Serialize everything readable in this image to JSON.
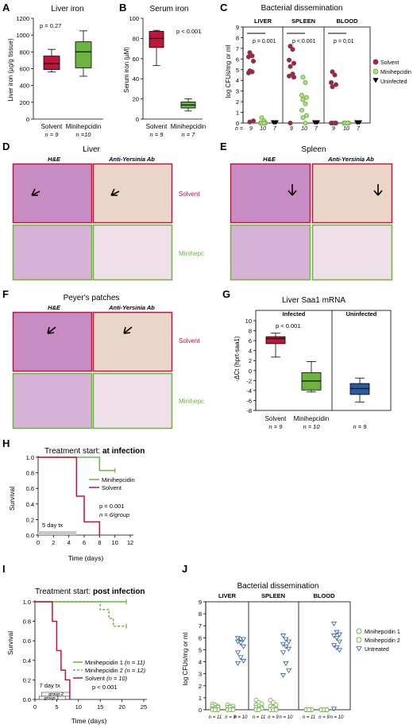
{
  "colors": {
    "solvent": "#c0143c",
    "mini": "#6cb33f",
    "blue": "#2c5aa0",
    "uninf": "#333333"
  },
  "panels": {
    "A": {
      "letter": "A",
      "title": "Liver iron",
      "ylabel": "Liver iron (µg/g tissue)",
      "pval": "p = 0.27",
      "ticks": [
        "0",
        "200",
        "400",
        "600",
        "800",
        "1000",
        "1200"
      ],
      "groups": [
        {
          "label": "Solvent",
          "n": "n = 9"
        },
        {
          "label": "Minihepcidin",
          "n": "n =10"
        }
      ]
    },
    "B": {
      "letter": "B",
      "title": "Serum iron",
      "ylabel": "Serum iron (µM)",
      "pval": "p < 0.001",
      "ticks": [
        "0",
        "20",
        "40",
        "60",
        "80",
        "100"
      ],
      "groups": [
        {
          "label": "Solvent",
          "n": "n = 9"
        },
        {
          "label": "Minihepcidin",
          "n": "n = 7"
        }
      ]
    },
    "C": {
      "letter": "C",
      "title": "Bacterial dissemination",
      "ylabel": "log CFUs/mg or ml",
      "ticks": [
        "0",
        "1",
        "2",
        "3",
        "4",
        "5",
        "6",
        "7",
        "8",
        "9"
      ],
      "sections": [
        {
          "label": "LIVER",
          "pval": "p = 0.001"
        },
        {
          "label": "SPLEEN",
          "pval": "p < 0.001"
        },
        {
          "label": "BLOOD",
          "pval": "p = 0.01"
        }
      ],
      "nprefix": "n =",
      "nvals": [
        "9",
        "10",
        "7",
        "9",
        "10",
        "7",
        "9",
        "10",
        "7"
      ],
      "legend": [
        "Solvent",
        "Minihepcidin",
        "Uninfected"
      ]
    },
    "D": {
      "letter": "D",
      "title": "Liver",
      "col1": "H&E",
      "col2": "Anti-Yersinia Ab",
      "row1": "Solvent",
      "row2": "Minihepc"
    },
    "E": {
      "letter": "E",
      "title": "Spleen",
      "col1": "H&E",
      "col2": "Anti-Yersinia Ab"
    },
    "F": {
      "letter": "F",
      "title": "Peyer's patches",
      "col1": "H&E",
      "col2": "Anti-Yersinia Ab",
      "row1": "Solvent",
      "row2": "Minihepc"
    },
    "G": {
      "letter": "G",
      "title": "Liver Saa1 mRNA",
      "ylabel": "-ΔCt (hprt-saa1)",
      "pval": "p < 0.001",
      "ticks": [
        "-8",
        "-6",
        "-4",
        "-2",
        "0",
        "2",
        "4",
        "6",
        "8",
        "10"
      ],
      "sec1": "Infected",
      "sec2": "Uninfected",
      "groups": [
        {
          "label": "Solvent",
          "n": "n = 9"
        },
        {
          "label": "Minihepcidin",
          "n": "n = 10"
        },
        {
          "label": "",
          "n": "n = 9"
        }
      ]
    },
    "H": {
      "letter": "H",
      "title_prefix": "Treatment start: ",
      "title_bold": "at infection",
      "ylabel": "Survival",
      "xlabel": "Time (days)",
      "yticks": [
        "0.0",
        "0.2",
        "0.4",
        "0.6",
        "0.8",
        "1.0"
      ],
      "xticks": [
        "0",
        "2",
        "4",
        "6",
        "8",
        "10",
        "12"
      ],
      "legend": [
        "Minihepcidin",
        "Solvent"
      ],
      "pval": "p = 0.001",
      "nlabel": "n = 6/group",
      "tx": "5  day tx"
    },
    "I": {
      "letter": "I",
      "title_prefix": "Treatment start: ",
      "title_bold": "post infection",
      "ylabel": "Survival",
      "xlabel": "Time (days)",
      "yticks": [
        "0.0",
        "0.2",
        "0.4",
        "0.6",
        "0.8",
        "1.0"
      ],
      "xticks": [
        "0",
        "5",
        "10",
        "15",
        "20",
        "25"
      ],
      "legend": [
        {
          "name": "Minihepcidin 1",
          "n": "(n = 11)"
        },
        {
          "name": "Minihepcidin 2",
          "n": "(n = 12)"
        },
        {
          "name": "Solvent",
          "n": "(n = 10)"
        }
      ],
      "pval": "p < 0.001",
      "tx": "7 day tx",
      "g2": "group 2",
      "g1": "group 1"
    },
    "J": {
      "letter": "J",
      "title": "Bacterial dissemination",
      "ylabel": "log CFUs/mg or ml",
      "ticks": [
        "0",
        "1",
        "2",
        "3",
        "4",
        "5",
        "6",
        "7",
        "8",
        "9"
      ],
      "sections": [
        "LIVER",
        "SPLEEN",
        "BLOOD"
      ],
      "nlabels": [
        "n = 11",
        "n = 9",
        "n = 10",
        "n = 11",
        "n = 9",
        "n = 10",
        "n = 11",
        "n = 9",
        "n = 10"
      ],
      "legend": [
        "Minihepcidin 1",
        "Minihepcidin 2",
        "Untreated"
      ]
    }
  },
  "chart_data": [
    {
      "type": "box",
      "panel": "A",
      "title": "Liver iron",
      "ylabel": "Liver iron (µg/g tissue)",
      "ylim": [
        0,
        1200
      ],
      "categories": [
        "Solvent",
        "Minihepcidin"
      ],
      "boxes": [
        {
          "min": 560,
          "q1": 590,
          "median": 660,
          "q3": 750,
          "max": 830
        },
        {
          "min": 510,
          "q1": 610,
          "median": 800,
          "q3": 920,
          "max": 1050
        }
      ]
    },
    {
      "type": "box",
      "panel": "B",
      "title": "Serum iron",
      "ylabel": "Serum iron (µM)",
      "ylim": [
        0,
        100
      ],
      "categories": [
        "Solvent",
        "Minihepcidin"
      ],
      "boxes": [
        {
          "min": 53,
          "q1": 71,
          "median": 80,
          "q3": 87,
          "max": 88
        },
        {
          "min": 8,
          "q1": 11,
          "median": 14,
          "q3": 17,
          "max": 20
        }
      ]
    },
    {
      "type": "scatter",
      "panel": "C",
      "title": "Bacterial dissemination",
      "ylabel": "log CFUs/mg or ml",
      "ylim": [
        0,
        9
      ],
      "series": [
        {
          "name": "Solvent",
          "liver": [
            6.6,
            6.3,
            6.2,
            5.8,
            4.9,
            4.8,
            4.7,
            0.2,
            0.1
          ],
          "spleen": [
            7.2,
            6.9,
            5.9,
            5.6,
            5.3,
            4.6,
            4.4,
            4.3,
            0
          ],
          "blood": [
            4.8,
            4.5,
            3.8,
            3.6,
            3.4,
            0,
            0,
            0,
            0
          ]
        },
        {
          "name": "Minihepcidin",
          "liver": [
            0.5,
            0.2,
            0,
            0,
            0,
            0,
            0,
            0,
            0,
            0
          ],
          "spleen": [
            4.3,
            3.8,
            2.6,
            2.4,
            2.2,
            1.8,
            1.2,
            0.7,
            0.5,
            0
          ],
          "blood": [
            0,
            0,
            0,
            0,
            0,
            0,
            0,
            0,
            0,
            0
          ]
        },
        {
          "name": "Uninfected",
          "liver": [
            0,
            0,
            0,
            0,
            0,
            0,
            0
          ],
          "spleen": [
            0,
            0,
            0,
            0,
            0,
            0,
            0
          ],
          "blood": [
            0,
            0,
            0,
            0,
            0,
            0,
            0
          ]
        }
      ]
    },
    {
      "type": "box",
      "panel": "G",
      "title": "Liver Saa1 mRNA",
      "ylabel": "-ΔCt (hprt-saa1)",
      "ylim": [
        -8,
        10
      ],
      "categories": [
        "Solvent",
        "Minihepcidin",
        ""
      ],
      "boxes": [
        {
          "min": 2.7,
          "q1": 5.4,
          "median": 6.4,
          "q3": 6.8,
          "max": 7.5
        },
        {
          "min": -4.3,
          "q1": -3.9,
          "median": -2.1,
          "q3": -0.4,
          "max": 1.8
        },
        {
          "min": -6.3,
          "q1": -4.8,
          "median": -3.6,
          "q3": -2.6,
          "max": -1.5
        }
      ]
    },
    {
      "type": "line",
      "panel": "H",
      "xlabel": "Time (days)",
      "ylabel": "Survival",
      "xlim": [
        0,
        12
      ],
      "ylim": [
        0,
        1
      ],
      "series": [
        {
          "name": "Minihepcidin",
          "x": [
            0,
            8,
            8,
            10
          ],
          "y": [
            1,
            1,
            0.83,
            0.83
          ]
        },
        {
          "name": "Solvent",
          "x": [
            0,
            5,
            5,
            6,
            6,
            8,
            8
          ],
          "y": [
            1,
            1,
            0.5,
            0.5,
            0.17,
            0.17,
            0
          ]
        }
      ]
    },
    {
      "type": "line",
      "panel": "I",
      "xlabel": "Time (days)",
      "ylabel": "Survival",
      "xlim": [
        0,
        25
      ],
      "ylim": [
        0,
        1
      ],
      "series": [
        {
          "name": "Minihepcidin 1",
          "x": [
            0,
            21
          ],
          "y": [
            1,
            1
          ]
        },
        {
          "name": "Minihepcidin 2",
          "x": [
            0,
            15,
            15,
            17,
            17,
            18,
            18,
            21
          ],
          "y": [
            1,
            1,
            0.92,
            0.92,
            0.83,
            0.83,
            0.75,
            0.75
          ]
        },
        {
          "name": "Solvent",
          "x": [
            0,
            4,
            4,
            5,
            5,
            6,
            6,
            7,
            7,
            8,
            8
          ],
          "y": [
            1,
            1,
            0.8,
            0.8,
            0.5,
            0.5,
            0.3,
            0.3,
            0.2,
            0.2,
            0
          ]
        }
      ]
    },
    {
      "type": "scatter",
      "panel": "J",
      "title": "Bacterial dissemination",
      "ylabel": "log CFUs/mg or ml",
      "ylim": [
        0,
        9
      ],
      "series": [
        {
          "name": "Minihepcidin 1",
          "liver": [
            0.5,
            0.4,
            0.3,
            0.3,
            0.2,
            0.2,
            0.1,
            0.1,
            0,
            0,
            0
          ],
          "spleen": [
            0.8,
            0.6,
            0.5,
            0.4,
            0.3,
            0.2,
            0.2,
            0.1,
            0.1,
            0,
            0
          ],
          "blood": [
            0,
            0,
            0,
            0,
            0,
            0,
            0,
            0,
            0,
            0,
            0
          ]
        },
        {
          "name": "Minihepcidin 2",
          "liver": [
            0.4,
            0.3,
            0.3,
            0.2,
            0.2,
            0.1,
            0,
            0,
            0
          ],
          "spleen": [
            0.8,
            0.6,
            0.4,
            0.3,
            0.2,
            0.1,
            0,
            0,
            0
          ],
          "blood": [
            0,
            0,
            0,
            0,
            0,
            0,
            0,
            0,
            0
          ]
        },
        {
          "name": "Untreated",
          "liver": [
            5.9,
            5.8,
            5.8,
            5.6,
            5.5,
            5.2,
            4.7,
            4.3,
            4.0,
            3.8
          ],
          "spleen": [
            6.1,
            5.8,
            5.6,
            5.4,
            5.2,
            5.0,
            4.7,
            3.8,
            3.2,
            2.8
          ],
          "blood": [
            7.1,
            6.4,
            6.2,
            6.1,
            5.9,
            5.6,
            5.3,
            5.1,
            4.9,
            0
          ]
        }
      ]
    }
  ]
}
